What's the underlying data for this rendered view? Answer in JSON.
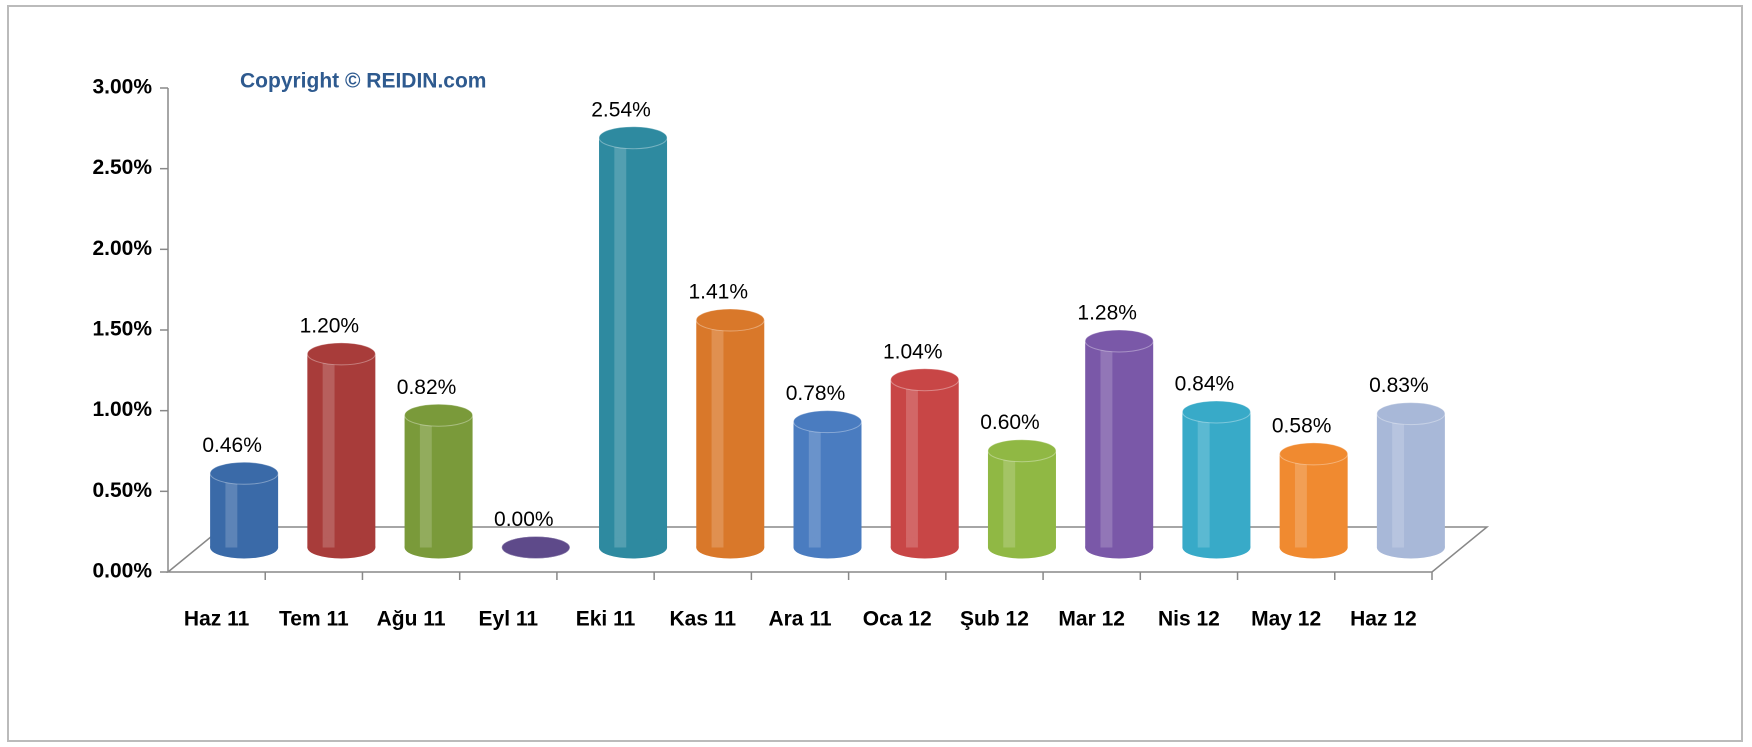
{
  "chart_data": {
    "type": "cylinder-bar",
    "annotation": "Copyright © REIDIN.com",
    "categories": [
      "Haz 11",
      "Tem 11",
      "Ağu 11",
      "Eyl 11",
      "Eki 11",
      "Kas 11",
      "Ara 11",
      "Oca 12",
      "Şub 12",
      "Mar 12",
      "Nis 12",
      "May 12",
      "Haz 12"
    ],
    "values": [
      0.46,
      1.2,
      0.82,
      0.0,
      2.54,
      1.41,
      0.78,
      1.04,
      0.6,
      1.28,
      0.84,
      0.58,
      0.83
    ],
    "value_labels": [
      "0.46%",
      "1.20%",
      "0.82%",
      "0.00%",
      "2.54%",
      "1.41%",
      "0.78%",
      "1.04%",
      "0.60%",
      "1.28%",
      "0.84%",
      "0.58%",
      "0.83%"
    ],
    "colors": [
      "#3a6aa8",
      "#a83c3a",
      "#7a9a3a",
      "#5e4a8a",
      "#2e8aa0",
      "#d9782a",
      "#4a7cc0",
      "#c84646",
      "#90b844",
      "#7a58a8",
      "#38aac8",
      "#f08a30",
      "#a8b8d8"
    ],
    "ylim": [
      0,
      3
    ],
    "yticks": [
      {
        "value": 0,
        "label": "0.00%"
      },
      {
        "value": 0.5,
        "label": "0.50%"
      },
      {
        "value": 1,
        "label": "1.00%"
      },
      {
        "value": 1.5,
        "label": "1.50%"
      },
      {
        "value": 2,
        "label": "2.00%"
      },
      {
        "value": 2.5,
        "label": "2.50%"
      },
      {
        "value": 3,
        "label": "3.00%"
      }
    ]
  }
}
